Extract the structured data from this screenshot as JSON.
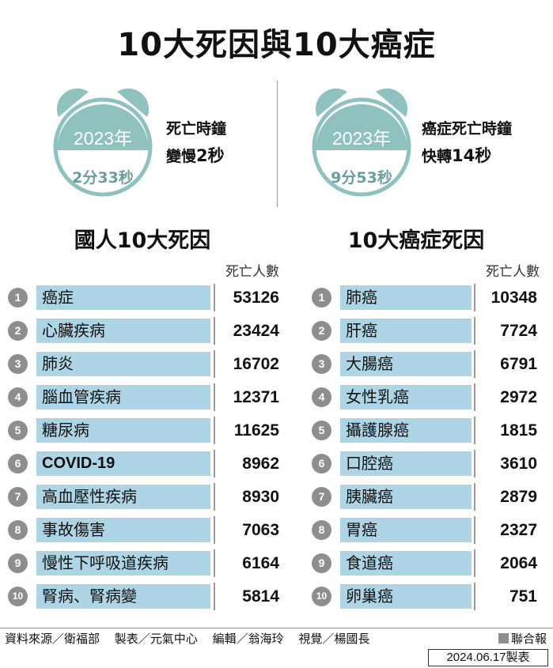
{
  "title": "10大死因與10大癌症",
  "colors": {
    "bar": "#aed5e5",
    "clock": "#8fc2be",
    "number_badge": "#8e8e8e",
    "divider": "#9a9a9a"
  },
  "clock_left": {
    "year": "2023年",
    "duration": "2分33秒",
    "line1": "死亡時鐘",
    "line2_prefix": "變慢",
    "line2_value": "2秒",
    "icon": "alarm-clock-icon"
  },
  "clock_right": {
    "year": "2023年",
    "duration": "9分53秒",
    "line1": "癌症死亡時鐘",
    "line2_prefix": "快轉",
    "line2_value": "14秒",
    "icon": "alarm-clock-icon"
  },
  "chart_data": [
    {
      "type": "table",
      "title": "國人10大死因",
      "value_label": "死亡人數",
      "ranks": [
        "1",
        "2",
        "3",
        "4",
        "5",
        "6",
        "7",
        "8",
        "9",
        "10"
      ],
      "categories": [
        "癌症",
        "心臟疾病",
        "肺炎",
        "腦血管疾病",
        "糖尿病",
        "COVID-19",
        "高血壓性疾病",
        "事故傷害",
        "慢性下呼吸道疾病",
        "腎病、腎病變"
      ],
      "values": [
        53126,
        23424,
        16702,
        12371,
        11625,
        8962,
        8930,
        7063,
        6164,
        5814
      ]
    },
    {
      "type": "table",
      "title": "10大癌症死因",
      "value_label": "死亡人數",
      "ranks": [
        "1",
        "2",
        "3",
        "4",
        "5",
        "6",
        "7",
        "8",
        "9",
        "10"
      ],
      "categories": [
        "肺癌",
        "肝癌",
        "大腸癌",
        "女性乳癌",
        "攝護腺癌",
        "口腔癌",
        "胰臟癌",
        "胃癌",
        "食道癌",
        "卵巢癌"
      ],
      "values": [
        10348,
        7724,
        6791,
        2972,
        1815,
        3610,
        2879,
        2327,
        2064,
        751
      ]
    }
  ],
  "footer": {
    "source": "資料來源／衛福部",
    "producer": "製表／元氣中心",
    "editor": "編輯／翁海玲",
    "visual": "視覺／楊國長",
    "brand": "聯合報",
    "date": "2024.06.17製表"
  }
}
